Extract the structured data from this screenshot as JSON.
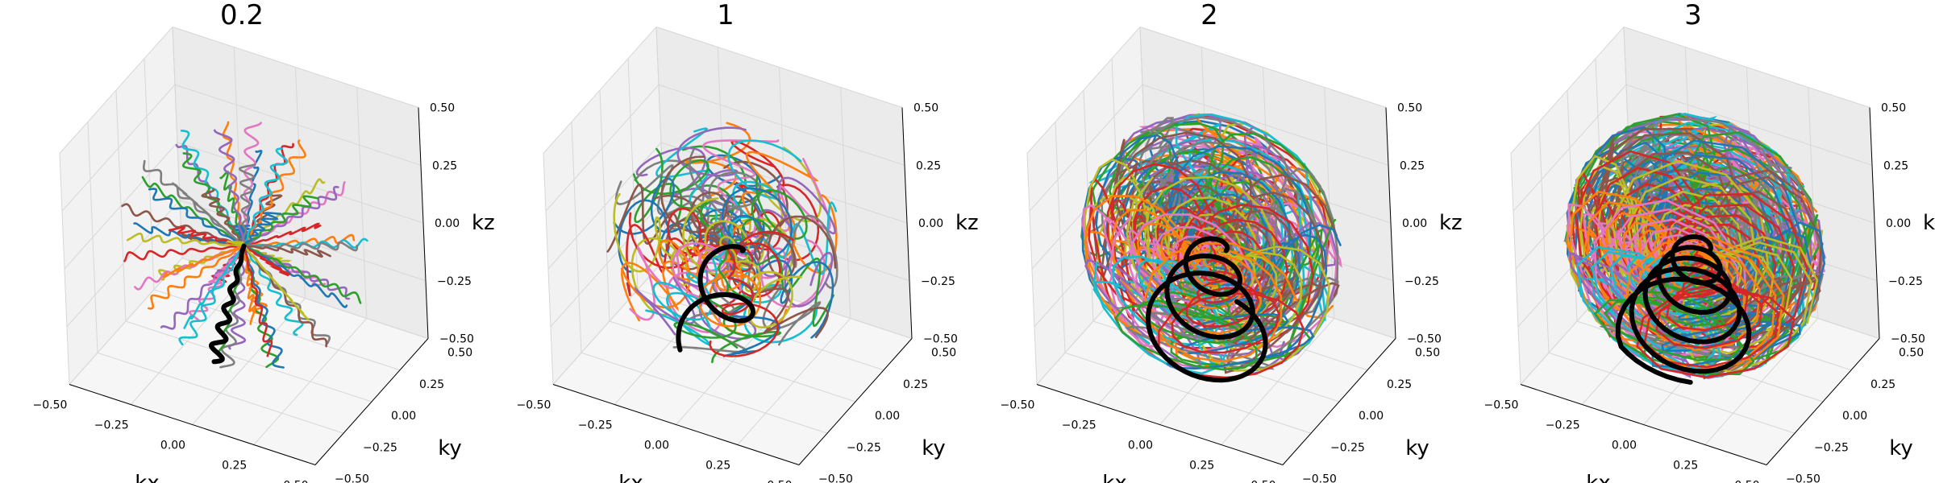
{
  "chart_data": [
    {
      "type": "line",
      "title": "0.2",
      "xlabel": "kx",
      "ylabel": "ky",
      "zlabel": "kz",
      "xlim": [
        -0.5,
        0.5
      ],
      "ylim": [
        -0.5,
        0.5
      ],
      "zlim": [
        -0.5,
        0.5
      ],
      "x_ticks": [
        "−0.50",
        "−0.25",
        "0.00",
        "0.25",
        "0.50"
      ],
      "y_ticks": [
        "−0.50",
        "−0.25",
        "0.00",
        "0.25",
        "0.50"
      ],
      "z_ticks": [
        "−0.50",
        "−0.25",
        "0.00",
        "0.25",
        "0.50"
      ],
      "projection": "3d",
      "grid": true,
      "curve_style": "radial",
      "spiral_turns": 0.2,
      "num_trajectories": 64,
      "highlighted_color": "#000000"
    },
    {
      "type": "line",
      "title": "1",
      "xlabel": "kx",
      "ylabel": "ky",
      "zlabel": "kz",
      "xlim": [
        -0.5,
        0.5
      ],
      "ylim": [
        -0.5,
        0.5
      ],
      "zlim": [
        -0.5,
        0.5
      ],
      "x_ticks": [
        "−0.50",
        "−0.25",
        "0.00",
        "0.25",
        "0.50"
      ],
      "y_ticks": [
        "−0.50",
        "−0.25",
        "0.00",
        "0.25",
        "0.50"
      ],
      "z_ticks": [
        "−0.50",
        "−0.25",
        "0.00",
        "0.25",
        "0.50"
      ],
      "projection": "3d",
      "grid": true,
      "curve_style": "spiral",
      "spiral_turns": 1,
      "num_trajectories": 64,
      "highlighted_color": "#000000"
    },
    {
      "type": "line",
      "title": "2",
      "xlabel": "kx",
      "ylabel": "ky",
      "zlabel": "kz",
      "xlim": [
        -0.5,
        0.5
      ],
      "ylim": [
        -0.5,
        0.5
      ],
      "zlim": [
        -0.5,
        0.5
      ],
      "x_ticks": [
        "−0.50",
        "−0.25",
        "0.00",
        "0.25",
        "0.50"
      ],
      "y_ticks": [
        "−0.50",
        "−0.25",
        "0.00",
        "0.25",
        "0.50"
      ],
      "z_ticks": [
        "−0.50",
        "−0.25",
        "0.00",
        "0.25",
        "0.50"
      ],
      "projection": "3d",
      "grid": true,
      "curve_style": "spiral",
      "spiral_turns": 2,
      "num_trajectories": 64,
      "highlighted_color": "#000000"
    },
    {
      "type": "line",
      "title": "3",
      "xlabel": "kx",
      "ylabel": "ky",
      "zlabel": "kz",
      "xlim": [
        -0.5,
        0.5
      ],
      "ylim": [
        -0.5,
        0.5
      ],
      "zlim": [
        -0.5,
        0.5
      ],
      "x_ticks": [
        "−0.50",
        "−0.25",
        "0.00",
        "0.25",
        "0.50"
      ],
      "y_ticks": [
        "−0.50",
        "−0.25",
        "0.00",
        "0.25",
        "0.50"
      ],
      "z_ticks": [
        "−0.50",
        "−0.25",
        "0.00",
        "0.25",
        "0.50"
      ],
      "projection": "3d",
      "grid": true,
      "curve_style": "spiral",
      "spiral_turns": 3,
      "num_trajectories": 64,
      "highlighted_color": "#000000"
    }
  ],
  "palette": [
    "#1f77b4",
    "#ff7f0e",
    "#2ca02c",
    "#d62728",
    "#9467bd",
    "#8c564b",
    "#e377c2",
    "#7f7f7f",
    "#bcbd22",
    "#17becf"
  ]
}
